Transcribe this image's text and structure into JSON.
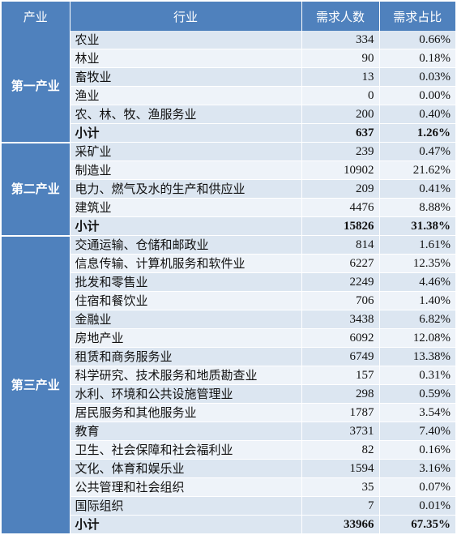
{
  "header": {
    "sector": "产业",
    "industry": "行业",
    "demand": "需求人数",
    "share": "需求占比"
  },
  "groups": [
    {
      "sector": "第一产业",
      "rows": [
        {
          "industry": "农业",
          "demand": "334",
          "share": "0.66%"
        },
        {
          "industry": "林业",
          "demand": "90",
          "share": "0.18%"
        },
        {
          "industry": "畜牧业",
          "demand": "13",
          "share": "0.03%"
        },
        {
          "industry": "渔业",
          "demand": "0",
          "share": "0.00%"
        },
        {
          "industry": "农、林、牧、渔服务业",
          "demand": "200",
          "share": "0.40%"
        }
      ],
      "subtotal": {
        "label": "小计",
        "demand": "637",
        "share": "1.26%"
      }
    },
    {
      "sector": "第二产业",
      "rows": [
        {
          "industry": "采矿业",
          "demand": "239",
          "share": "0.47%"
        },
        {
          "industry": "制造业",
          "demand": "10902",
          "share": "21.62%"
        },
        {
          "industry": "电力、燃气及水的生产和供应业",
          "demand": "209",
          "share": "0.41%"
        },
        {
          "industry": "建筑业",
          "demand": "4476",
          "share": "8.88%"
        }
      ],
      "subtotal": {
        "label": "小计",
        "demand": "15826",
        "share": "31.38%"
      }
    },
    {
      "sector": "第三产业",
      "rows": [
        {
          "industry": "交通运输、仓储和邮政业",
          "demand": "814",
          "share": "1.61%"
        },
        {
          "industry": "信息传输、计算机服务和软件业",
          "demand": "6227",
          "share": "12.35%"
        },
        {
          "industry": "批发和零售业",
          "demand": "2249",
          "share": "4.46%"
        },
        {
          "industry": "住宿和餐饮业",
          "demand": "706",
          "share": "1.40%"
        },
        {
          "industry": "金融业",
          "demand": "3438",
          "share": "6.82%"
        },
        {
          "industry": "房地产业",
          "demand": "6092",
          "share": "12.08%"
        },
        {
          "industry": "租赁和商务服务业",
          "demand": "6749",
          "share": "13.38%"
        },
        {
          "industry": "科学研究、技术服务和地质勘查业",
          "demand": "157",
          "share": "0.31%"
        },
        {
          "industry": "水利、环境和公共设施管理业",
          "demand": "298",
          "share": "0.59%"
        },
        {
          "industry": "居民服务和其他服务业",
          "demand": "1787",
          "share": "3.54%"
        },
        {
          "industry": "教育",
          "demand": "3731",
          "share": "7.40%"
        },
        {
          "industry": "卫生、社会保障和社会福利业",
          "demand": "82",
          "share": "0.16%"
        },
        {
          "industry": "文化、体育和娱乐业",
          "demand": "1594",
          "share": "3.16%"
        },
        {
          "industry": "公共管理和社会组织",
          "demand": "35",
          "share": "0.07%"
        },
        {
          "industry": "国际组织",
          "demand": "7",
          "share": "0.01%"
        }
      ],
      "subtotal": {
        "label": "小计",
        "demand": "33966",
        "share": "67.35%"
      }
    }
  ],
  "colors": {
    "header_bg": "#4f81bd",
    "row_dark": "#dce6f1",
    "row_light": "#eef3f9"
  }
}
